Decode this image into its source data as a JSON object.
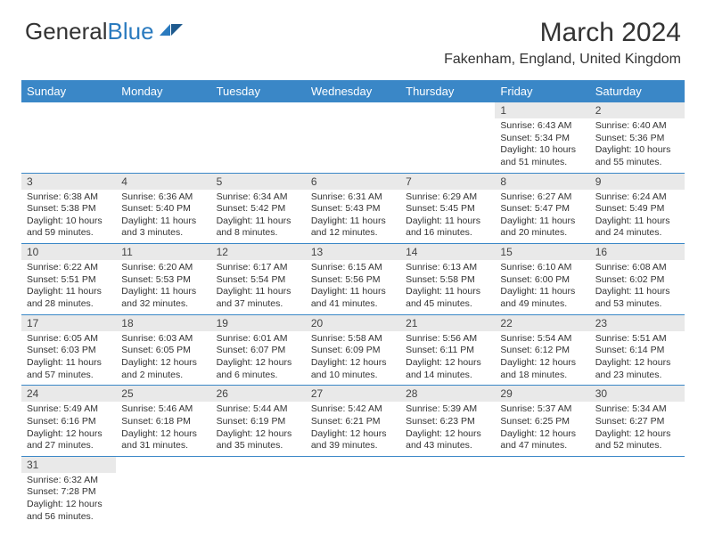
{
  "logo": {
    "part1": "General",
    "part2": "Blue"
  },
  "title": "March 2024",
  "location": "Fakenham, England, United Kingdom",
  "colors": {
    "headerBg": "#3a87c7",
    "headerText": "#ffffff",
    "dayNumBg": "#e9e9e9",
    "borderColor": "#3a87c7",
    "logoBlue": "#2b7bbf"
  },
  "weekdays": [
    "Sunday",
    "Monday",
    "Tuesday",
    "Wednesday",
    "Thursday",
    "Friday",
    "Saturday"
  ],
  "days": [
    {
      "num": "1",
      "sunrise": "6:43 AM",
      "sunset": "5:34 PM",
      "daylight": "10 hours and 51 minutes."
    },
    {
      "num": "2",
      "sunrise": "6:40 AM",
      "sunset": "5:36 PM",
      "daylight": "10 hours and 55 minutes."
    },
    {
      "num": "3",
      "sunrise": "6:38 AM",
      "sunset": "5:38 PM",
      "daylight": "10 hours and 59 minutes."
    },
    {
      "num": "4",
      "sunrise": "6:36 AM",
      "sunset": "5:40 PM",
      "daylight": "11 hours and 3 minutes."
    },
    {
      "num": "5",
      "sunrise": "6:34 AM",
      "sunset": "5:42 PM",
      "daylight": "11 hours and 8 minutes."
    },
    {
      "num": "6",
      "sunrise": "6:31 AM",
      "sunset": "5:43 PM",
      "daylight": "11 hours and 12 minutes."
    },
    {
      "num": "7",
      "sunrise": "6:29 AM",
      "sunset": "5:45 PM",
      "daylight": "11 hours and 16 minutes."
    },
    {
      "num": "8",
      "sunrise": "6:27 AM",
      "sunset": "5:47 PM",
      "daylight": "11 hours and 20 minutes."
    },
    {
      "num": "9",
      "sunrise": "6:24 AM",
      "sunset": "5:49 PM",
      "daylight": "11 hours and 24 minutes."
    },
    {
      "num": "10",
      "sunrise": "6:22 AM",
      "sunset": "5:51 PM",
      "daylight": "11 hours and 28 minutes."
    },
    {
      "num": "11",
      "sunrise": "6:20 AM",
      "sunset": "5:53 PM",
      "daylight": "11 hours and 32 minutes."
    },
    {
      "num": "12",
      "sunrise": "6:17 AM",
      "sunset": "5:54 PM",
      "daylight": "11 hours and 37 minutes."
    },
    {
      "num": "13",
      "sunrise": "6:15 AM",
      "sunset": "5:56 PM",
      "daylight": "11 hours and 41 minutes."
    },
    {
      "num": "14",
      "sunrise": "6:13 AM",
      "sunset": "5:58 PM",
      "daylight": "11 hours and 45 minutes."
    },
    {
      "num": "15",
      "sunrise": "6:10 AM",
      "sunset": "6:00 PM",
      "daylight": "11 hours and 49 minutes."
    },
    {
      "num": "16",
      "sunrise": "6:08 AM",
      "sunset": "6:02 PM",
      "daylight": "11 hours and 53 minutes."
    },
    {
      "num": "17",
      "sunrise": "6:05 AM",
      "sunset": "6:03 PM",
      "daylight": "11 hours and 57 minutes."
    },
    {
      "num": "18",
      "sunrise": "6:03 AM",
      "sunset": "6:05 PM",
      "daylight": "12 hours and 2 minutes."
    },
    {
      "num": "19",
      "sunrise": "6:01 AM",
      "sunset": "6:07 PM",
      "daylight": "12 hours and 6 minutes."
    },
    {
      "num": "20",
      "sunrise": "5:58 AM",
      "sunset": "6:09 PM",
      "daylight": "12 hours and 10 minutes."
    },
    {
      "num": "21",
      "sunrise": "5:56 AM",
      "sunset": "6:11 PM",
      "daylight": "12 hours and 14 minutes."
    },
    {
      "num": "22",
      "sunrise": "5:54 AM",
      "sunset": "6:12 PM",
      "daylight": "12 hours and 18 minutes."
    },
    {
      "num": "23",
      "sunrise": "5:51 AM",
      "sunset": "6:14 PM",
      "daylight": "12 hours and 23 minutes."
    },
    {
      "num": "24",
      "sunrise": "5:49 AM",
      "sunset": "6:16 PM",
      "daylight": "12 hours and 27 minutes."
    },
    {
      "num": "25",
      "sunrise": "5:46 AM",
      "sunset": "6:18 PM",
      "daylight": "12 hours and 31 minutes."
    },
    {
      "num": "26",
      "sunrise": "5:44 AM",
      "sunset": "6:19 PM",
      "daylight": "12 hours and 35 minutes."
    },
    {
      "num": "27",
      "sunrise": "5:42 AM",
      "sunset": "6:21 PM",
      "daylight": "12 hours and 39 minutes."
    },
    {
      "num": "28",
      "sunrise": "5:39 AM",
      "sunset": "6:23 PM",
      "daylight": "12 hours and 43 minutes."
    },
    {
      "num": "29",
      "sunrise": "5:37 AM",
      "sunset": "6:25 PM",
      "daylight": "12 hours and 47 minutes."
    },
    {
      "num": "30",
      "sunrise": "5:34 AM",
      "sunset": "6:27 PM",
      "daylight": "12 hours and 52 minutes."
    },
    {
      "num": "31",
      "sunrise": "6:32 AM",
      "sunset": "7:28 PM",
      "daylight": "12 hours and 56 minutes."
    }
  ],
  "labels": {
    "sunrise": "Sunrise:",
    "sunset": "Sunset:",
    "daylight": "Daylight:"
  },
  "startOffset": 5
}
